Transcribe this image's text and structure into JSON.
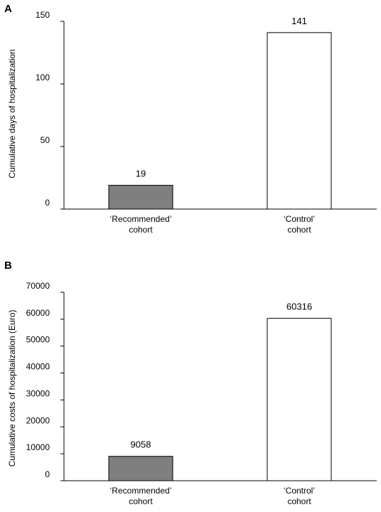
{
  "panels": [
    {
      "label": "A",
      "chart_data": {
        "type": "bar",
        "categories": [
          [
            "‘Recommended’",
            "cohort"
          ],
          [
            "‘Control’",
            "cohort"
          ]
        ],
        "values": [
          19,
          141
        ],
        "value_labels": [
          "19",
          "141"
        ],
        "bar_colors": [
          "#7f7f7f",
          "#ffffff"
        ],
        "ylabel": "Cumulative days of hospitalization",
        "yticks": [
          0,
          50,
          100,
          150
        ],
        "ylim": [
          0,
          150
        ],
        "grid": false,
        "legend": "none"
      }
    },
    {
      "label": "B",
      "chart_data": {
        "type": "bar",
        "categories": [
          [
            "‘Recommended’",
            "cohort"
          ],
          [
            "‘Control’",
            "cohort"
          ]
        ],
        "values": [
          9058,
          60316
        ],
        "value_labels": [
          "9058",
          "60316"
        ],
        "bar_colors": [
          "#7f7f7f",
          "#ffffff"
        ],
        "ylabel": "Cumulative costs of hospitalization (Euro)",
        "yticks": [
          0,
          10000,
          20000,
          30000,
          40000,
          50000,
          60000,
          70000
        ],
        "ylim": [
          0,
          70000
        ],
        "grid": false,
        "legend": "none"
      }
    }
  ]
}
